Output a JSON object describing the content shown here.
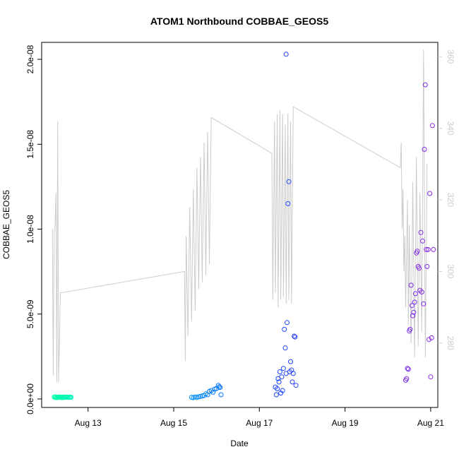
{
  "chart_data": {
    "type": "scatter",
    "title": "ATOM1 Northbound COBBAE_GEOS5",
    "xlabel": "Date",
    "ylabel": "COBBAE_GEOS5",
    "xlim": [
      "2016-08-11T22:00",
      "2016-08-21T04:00"
    ],
    "ylim": [
      -5e-10,
      2.1e-08
    ],
    "ylim_right": [
      262,
      364
    ],
    "grid": false,
    "x_ticks": [
      {
        "value": "2016-08-13T00:00",
        "label": "Aug 13"
      },
      {
        "value": "2016-08-15T00:00",
        "label": "Aug 15"
      },
      {
        "value": "2016-08-17T00:00",
        "label": "Aug 17"
      },
      {
        "value": "2016-08-19T00:00",
        "label": "Aug 19"
      },
      {
        "value": "2016-08-21T00:00",
        "label": "Aug 21"
      }
    ],
    "y_ticks": [
      {
        "value": 0,
        "label": "0.0e+00"
      },
      {
        "value": 5e-09,
        "label": "5.0e-09"
      },
      {
        "value": 1e-08,
        "label": "1.0e-08"
      },
      {
        "value": 1.5e-08,
        "label": "1.5e-08"
      },
      {
        "value": 2e-08,
        "label": "2.0e-08"
      }
    ],
    "y_ticks_right": [
      {
        "value": 280,
        "label": "280"
      },
      {
        "value": 300,
        "label": "300"
      },
      {
        "value": 320,
        "label": "320"
      },
      {
        "value": 340,
        "label": "340"
      },
      {
        "value": 360,
        "label": "360"
      }
    ],
    "colors": {
      "series_line": "#cccccc",
      "right_axis": "#cccccc",
      "axis": "#000000",
      "points_gradient": [
        "#00ffaa",
        "#00c8ff",
        "#0055ff",
        "#4a2bff",
        "#8a2be2"
      ]
    },
    "series": [
      {
        "axis": "left",
        "marker": "circle-open",
        "points": [
          [
            "2016-08-12T05:00",
            1.1e-10
          ],
          [
            "2016-08-12T05:30",
            9e-11
          ],
          [
            "2016-08-12T06:00",
            1.2e-10
          ],
          [
            "2016-08-12T06:30",
            8e-11
          ],
          [
            "2016-08-12T07:00",
            1e-10
          ],
          [
            "2016-08-12T07:30",
            1.1e-10
          ],
          [
            "2016-08-12T08:00",
            9e-11
          ],
          [
            "2016-08-12T08:30",
            1.2e-10
          ],
          [
            "2016-08-12T09:00",
            1e-10
          ],
          [
            "2016-08-12T09:30",
            8e-11
          ],
          [
            "2016-08-12T10:00",
            1.1e-10
          ],
          [
            "2016-08-12T10:30",
            1e-10
          ],
          [
            "2016-08-12T11:00",
            9e-11
          ],
          [
            "2016-08-12T11:30",
            1.2e-10
          ],
          [
            "2016-08-12T12:00",
            1e-10
          ],
          [
            "2016-08-12T12:30",
            1.1e-10
          ],
          [
            "2016-08-12T13:00",
            9e-11
          ],
          [
            "2016-08-12T13:30",
            1e-10
          ],
          [
            "2016-08-12T14:00",
            1.1e-10
          ],
          [
            "2016-08-12T14:30",
            1e-10
          ],
          [
            "2016-08-15T10:00",
            1e-10
          ],
          [
            "2016-08-15T11:00",
            8e-11
          ],
          [
            "2016-08-15T12:00",
            1.2e-10
          ],
          [
            "2016-08-15T13:00",
            9e-11
          ],
          [
            "2016-08-15T14:00",
            1.3e-10
          ],
          [
            "2016-08-15T15:00",
            1.5e-10
          ],
          [
            "2016-08-15T16:00",
            1.8e-10
          ],
          [
            "2016-08-15T17:00",
            2e-10
          ],
          [
            "2016-08-15T18:00",
            3e-10
          ],
          [
            "2016-08-15T19:00",
            2.5e-10
          ],
          [
            "2016-08-15T20:00",
            4.5e-10
          ],
          [
            "2016-08-15T21:00",
            5e-10
          ],
          [
            "2016-08-15T22:00",
            4e-10
          ],
          [
            "2016-08-15T23:00",
            5.8e-10
          ],
          [
            "2016-08-16T00:00",
            6.2e-10
          ],
          [
            "2016-08-16T01:00",
            8e-10
          ],
          [
            "2016-08-16T01:30",
            7.2e-10
          ],
          [
            "2016-08-16T02:00",
            6.8e-10
          ],
          [
            "2016-08-16T02:30",
            2.5e-10
          ],
          [
            "2016-08-17T09:00",
            7e-10
          ],
          [
            "2016-08-17T09:30",
            2.5e-10
          ],
          [
            "2016-08-17T10:00",
            6e-10
          ],
          [
            "2016-08-17T10:30",
            1.2e-09
          ],
          [
            "2016-08-17T11:00",
            1e-09
          ],
          [
            "2016-08-17T11:30",
            1.6e-09
          ],
          [
            "2016-08-17T12:00",
            3.5e-10
          ],
          [
            "2016-08-17T12:30",
            1.3e-09
          ],
          [
            "2016-08-17T13:00",
            5e-10
          ],
          [
            "2016-08-17T13:30",
            1.8e-09
          ],
          [
            "2016-08-17T14:00",
            4.1e-09
          ],
          [
            "2016-08-17T14:30",
            3e-09
          ],
          [
            "2016-08-17T15:00",
            1.5e-09
          ],
          [
            "2016-08-17T15:30",
            4.5e-09
          ],
          [
            "2016-08-17T16:00",
            1.15e-08
          ],
          [
            "2016-08-17T16:30",
            1.28e-08
          ],
          [
            "2016-08-17T17:00",
            1.6e-09
          ],
          [
            "2016-08-17T17:30",
            2.2e-09
          ],
          [
            "2016-08-17T18:00",
            1.7e-09
          ],
          [
            "2016-08-17T18:30",
            1e-09
          ],
          [
            "2016-08-17T19:00",
            1.5e-09
          ],
          [
            "2016-08-17T19:30",
            3.7e-09
          ],
          [
            "2016-08-17T20:00",
            3.65e-09
          ],
          [
            "2016-08-17T20:30",
            8e-10
          ],
          [
            "2016-08-17T15:00",
            2.03e-08
          ],
          [
            "2016-08-20T10:00",
            1.1e-09
          ],
          [
            "2016-08-20T10:30",
            1.2e-09
          ],
          [
            "2016-08-20T11:00",
            1.8e-09
          ],
          [
            "2016-08-20T11:30",
            1.75e-09
          ],
          [
            "2016-08-20T12:00",
            4e-09
          ],
          [
            "2016-08-20T12:30",
            4.1e-09
          ],
          [
            "2016-08-20T13:00",
            6.7e-09
          ],
          [
            "2016-08-20T13:30",
            5.5e-09
          ],
          [
            "2016-08-20T14:00",
            4.9e-09
          ],
          [
            "2016-08-20T14:30",
            5.1e-09
          ],
          [
            "2016-08-20T15:00",
            5.7e-09
          ],
          [
            "2016-08-20T15:30",
            6.2e-09
          ],
          [
            "2016-08-20T16:00",
            8.6e-09
          ],
          [
            "2016-08-20T16:30",
            8.7e-09
          ],
          [
            "2016-08-20T17:00",
            7.8e-09
          ],
          [
            "2016-08-20T17:30",
            7.7e-09
          ],
          [
            "2016-08-20T18:00",
            6.4e-09
          ],
          [
            "2016-08-20T18:30",
            9.8e-09
          ],
          [
            "2016-08-20T19:00",
            6.3e-09
          ],
          [
            "2016-08-20T19:30",
            9.3e-09
          ],
          [
            "2016-08-20T20:00",
            5.6e-09
          ],
          [
            "2016-08-20T20:30",
            1.47e-08
          ],
          [
            "2016-08-20T21:00",
            1.85e-08
          ],
          [
            "2016-08-20T21:30",
            8.8e-09
          ],
          [
            "2016-08-20T22:00",
            7.8e-09
          ],
          [
            "2016-08-20T22:30",
            8.8e-09
          ],
          [
            "2016-08-20T23:00",
            3.5e-09
          ],
          [
            "2016-08-20T23:30",
            1.21e-08
          ],
          [
            "2016-08-21T00:00",
            1.3e-09
          ],
          [
            "2016-08-21T00:30",
            3.6e-09
          ],
          [
            "2016-08-21T01:00",
            1.61e-08
          ],
          [
            "2016-08-21T01:30",
            8.8e-09
          ]
        ]
      },
      {
        "axis": "right",
        "marker": "line",
        "points": [
          [
            "2016-08-12T04:00",
            312
          ],
          [
            "2016-08-12T04:30",
            271
          ],
          [
            "2016-08-12T05:00",
            311
          ],
          [
            "2016-08-12T05:30",
            313
          ],
          [
            "2016-08-12T06:00",
            322
          ],
          [
            "2016-08-12T06:30",
            269
          ],
          [
            "2016-08-12T07:00",
            342
          ],
          [
            "2016-08-12T07:30",
            269
          ],
          [
            "2016-08-12T08:30",
            294
          ],
          [
            "2016-08-15T06:00",
            300
          ],
          [
            "2016-08-15T06:30",
            275
          ],
          [
            "2016-08-15T07:00",
            310
          ],
          [
            "2016-08-15T08:00",
            282
          ],
          [
            "2016-08-15T09:00",
            318
          ],
          [
            "2016-08-15T10:00",
            286
          ],
          [
            "2016-08-15T11:00",
            323
          ],
          [
            "2016-08-15T12:00",
            289
          ],
          [
            "2016-08-15T13:00",
            329
          ],
          [
            "2016-08-15T14:00",
            295
          ],
          [
            "2016-08-15T15:00",
            332
          ],
          [
            "2016-08-15T16:00",
            297
          ],
          [
            "2016-08-15T17:00",
            336
          ],
          [
            "2016-08-15T18:00",
            299
          ],
          [
            "2016-08-15T19:00",
            339
          ],
          [
            "2016-08-15T20:00",
            302
          ],
          [
            "2016-08-15T21:00",
            343
          ],
          [
            "2016-08-17T07:00",
            333
          ],
          [
            "2016-08-17T07:30",
            292
          ],
          [
            "2016-08-17T08:30",
            342
          ],
          [
            "2016-08-17T09:00",
            294
          ],
          [
            "2016-08-17T10:00",
            344
          ],
          [
            "2016-08-17T10:30",
            290
          ],
          [
            "2016-08-17T11:30",
            345
          ],
          [
            "2016-08-17T12:00",
            292
          ],
          [
            "2016-08-17T13:00",
            344
          ],
          [
            "2016-08-17T13:30",
            293
          ],
          [
            "2016-08-17T14:30",
            341
          ],
          [
            "2016-08-17T15:00",
            291
          ],
          [
            "2016-08-17T16:00",
            344
          ],
          [
            "2016-08-17T16:30",
            292
          ],
          [
            "2016-08-17T17:30",
            342
          ],
          [
            "2016-08-17T18:00",
            291
          ],
          [
            "2016-08-17T19:00",
            346
          ],
          [
            "2016-08-20T07:00",
            329
          ],
          [
            "2016-08-20T07:30",
            336
          ],
          [
            "2016-08-20T08:00",
            312
          ],
          [
            "2016-08-20T08:30",
            323
          ],
          [
            "2016-08-20T09:00",
            300
          ],
          [
            "2016-08-20T09:30",
            310
          ],
          [
            "2016-08-20T10:00",
            290
          ],
          [
            "2016-08-20T11:00",
            320
          ],
          [
            "2016-08-20T11:30",
            285
          ],
          [
            "2016-08-20T12:00",
            313
          ],
          [
            "2016-08-20T13:00",
            280
          ],
          [
            "2016-08-20T14:00",
            325
          ],
          [
            "2016-08-20T15:00",
            276
          ],
          [
            "2016-08-20T16:00",
            332
          ],
          [
            "2016-08-20T17:00",
            279
          ],
          [
            "2016-08-20T18:00",
            322
          ],
          [
            "2016-08-20T19:00",
            283
          ],
          [
            "2016-08-20T20:00",
            362
          ],
          [
            "2016-08-20T21:00",
            276
          ],
          [
            "2016-08-20T22:00",
            330
          ]
        ]
      }
    ]
  }
}
